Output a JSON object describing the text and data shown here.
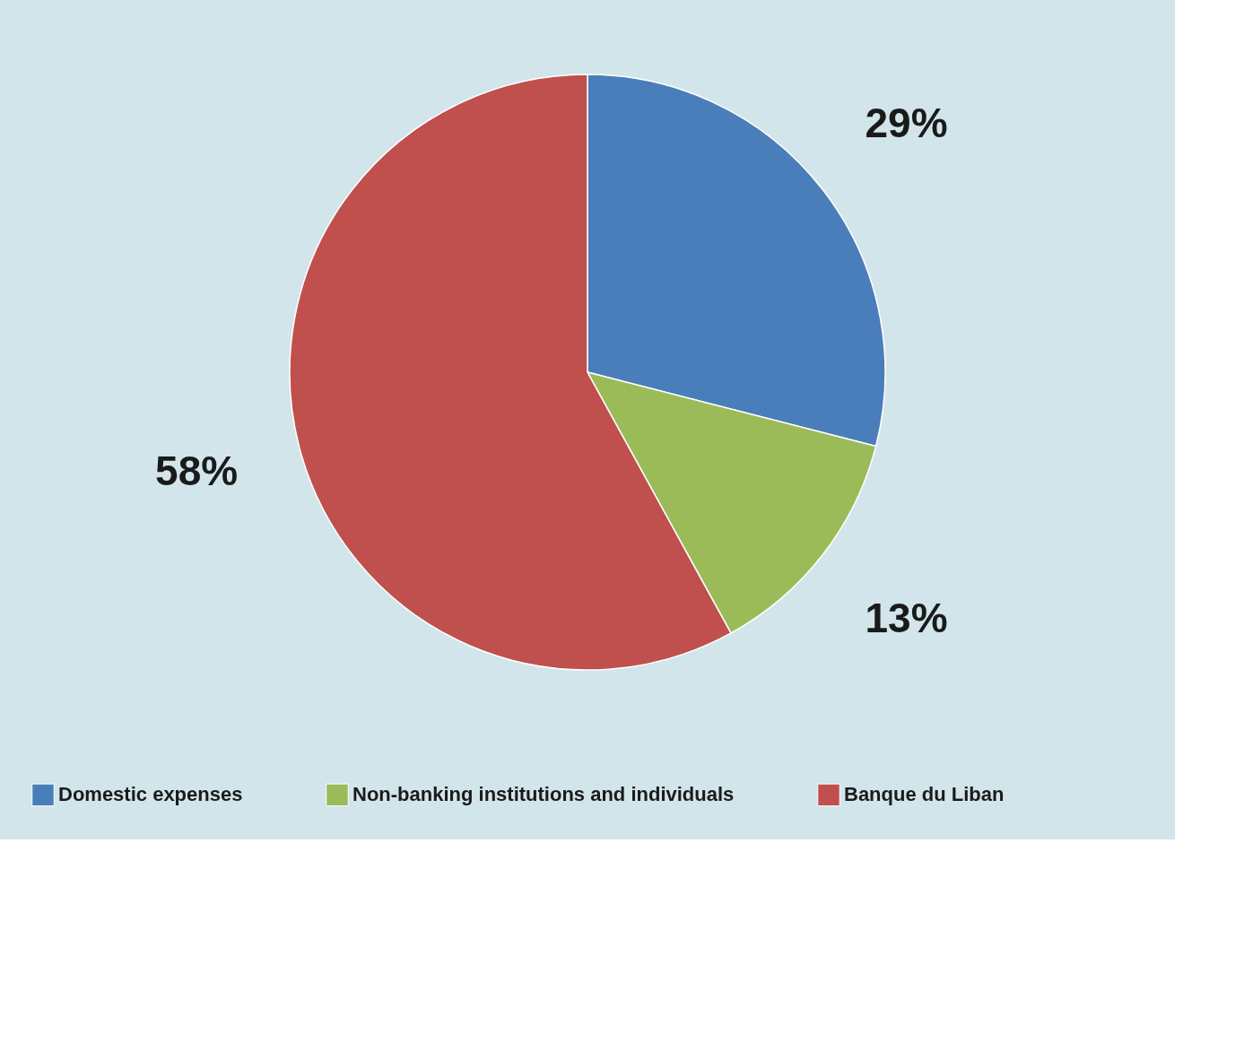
{
  "chart_data": {
    "type": "pie",
    "categories": [
      "Domestic expenses",
      "Non-banking institutions and individuals",
      "Banque du Liban"
    ],
    "values": [
      29,
      13,
      58
    ],
    "colors": [
      "#4a7ebb",
      "#9bbb59",
      "#c0504d"
    ],
    "value_labels": [
      "29%",
      "13%",
      "58%"
    ],
    "legend": "bottom"
  }
}
